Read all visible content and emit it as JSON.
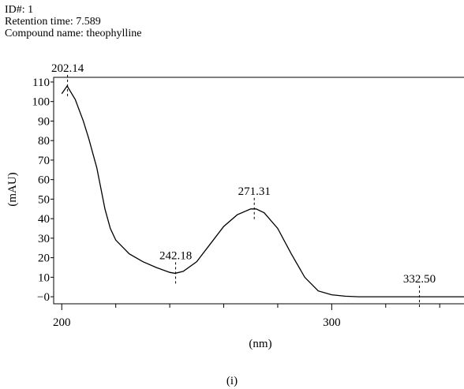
{
  "chart_data": {
    "type": "line",
    "header": [
      "ID#: 1",
      "Retention time: 7.589",
      "Compound name: theophylline"
    ],
    "xlabel": "(nm)",
    "ylabel": "(mAU)",
    "caption": "(i)",
    "x": [
      200,
      202,
      205,
      208,
      210,
      213,
      216,
      218,
      220,
      225,
      230,
      235,
      240,
      242,
      245,
      250,
      255,
      260,
      265,
      270,
      272,
      275,
      280,
      285,
      290,
      295,
      300,
      305,
      310,
      320,
      332.5,
      340,
      349
    ],
    "values": [
      104,
      108,
      101,
      90,
      81,
      66,
      45,
      35,
      29,
      22,
      18,
      15,
      12.5,
      12,
      13,
      18,
      27,
      36,
      42,
      45,
      45,
      43,
      35,
      22,
      10,
      3,
      1,
      0.3,
      0,
      0,
      0,
      0,
      0
    ],
    "color": "#000000",
    "xlim": [
      197,
      349
    ],
    "ylim": [
      -3.6,
      112.4
    ],
    "xticks": [
      200,
      300
    ],
    "xminorticks": [
      220,
      240,
      260,
      280,
      320,
      340
    ],
    "yticks": [
      {
        "value": 0,
        "label": "−0"
      },
      10,
      20,
      30,
      40,
      50,
      60,
      70,
      80,
      90,
      100,
      110
    ],
    "annotations": [
      {
        "x": 202.14,
        "y": 108,
        "label": "202.14"
      },
      {
        "x": 242.18,
        "y": 12,
        "label": "242.18"
      },
      {
        "x": 271.31,
        "y": 45,
        "label": "271.31"
      },
      {
        "x": 332.5,
        "y": 0,
        "label": "332.50"
      }
    ]
  }
}
